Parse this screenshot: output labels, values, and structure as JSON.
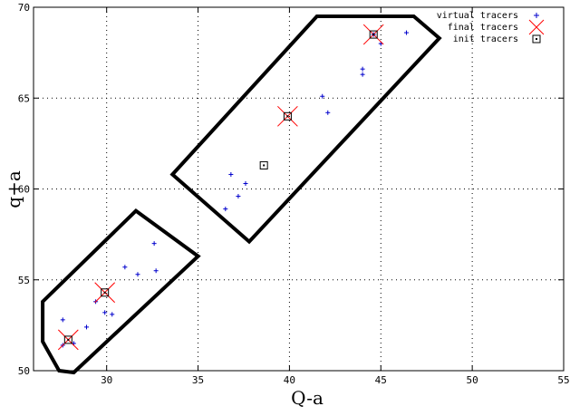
{
  "chart_data": {
    "type": "scatter",
    "xlabel": "Q-a",
    "ylabel": "q+a",
    "xlim": [
      26,
      55
    ],
    "ylim": [
      50,
      70
    ],
    "x_ticks": [
      "30",
      "35",
      "40",
      "45",
      "50",
      "55"
    ],
    "y_ticks": [
      "50",
      "55",
      "60",
      "65",
      "70"
    ],
    "grid": true,
    "legend_position": "top-right",
    "regions": [
      {
        "name": "upper-region",
        "vertices": [
          [
            41.5,
            69.5
          ],
          [
            46.8,
            69.5
          ],
          [
            48.2,
            68.3
          ],
          [
            37.8,
            57.1
          ],
          [
            33.6,
            60.8
          ]
        ]
      },
      {
        "name": "lower-region",
        "vertices": [
          [
            31.6,
            58.8
          ],
          [
            35.0,
            56.3
          ],
          [
            28.2,
            49.9
          ],
          [
            27.4,
            50.0
          ],
          [
            26.5,
            51.6
          ],
          [
            26.5,
            53.8
          ]
        ]
      }
    ],
    "series": [
      {
        "name": "virtual tracers",
        "marker": "plus",
        "color": "#0000cc",
        "points": [
          [
            44.6,
            68.5
          ],
          [
            45.0,
            68.0
          ],
          [
            46.4,
            68.6
          ],
          [
            44.0,
            66.6
          ],
          [
            44.0,
            66.3
          ],
          [
            41.8,
            65.1
          ],
          [
            42.1,
            64.2
          ],
          [
            36.8,
            60.8
          ],
          [
            37.6,
            60.3
          ],
          [
            37.2,
            59.6
          ],
          [
            36.5,
            58.9
          ],
          [
            32.6,
            57.0
          ],
          [
            31.0,
            55.7
          ],
          [
            31.7,
            55.3
          ],
          [
            32.7,
            55.5
          ],
          [
            29.4,
            53.8
          ],
          [
            29.9,
            53.2
          ],
          [
            30.3,
            53.1
          ],
          [
            27.6,
            52.8
          ],
          [
            28.9,
            52.4
          ],
          [
            27.6,
            51.4
          ],
          [
            28.2,
            51.5
          ]
        ]
      },
      {
        "name": "final tracers",
        "marker": "x",
        "color": "#ff0000",
        "points": [
          [
            44.6,
            68.5
          ],
          [
            39.9,
            64.0
          ],
          [
            29.9,
            54.3
          ],
          [
            27.9,
            51.7
          ]
        ]
      },
      {
        "name": "init tracers",
        "marker": "square",
        "color": "#000000",
        "points": [
          [
            44.6,
            68.5
          ],
          [
            39.9,
            64.0
          ],
          [
            38.6,
            61.3
          ],
          [
            29.9,
            54.3
          ],
          [
            27.9,
            51.7
          ]
        ]
      }
    ],
    "legend": [
      "virtual tracers",
      "final tracers",
      "init tracers"
    ]
  }
}
